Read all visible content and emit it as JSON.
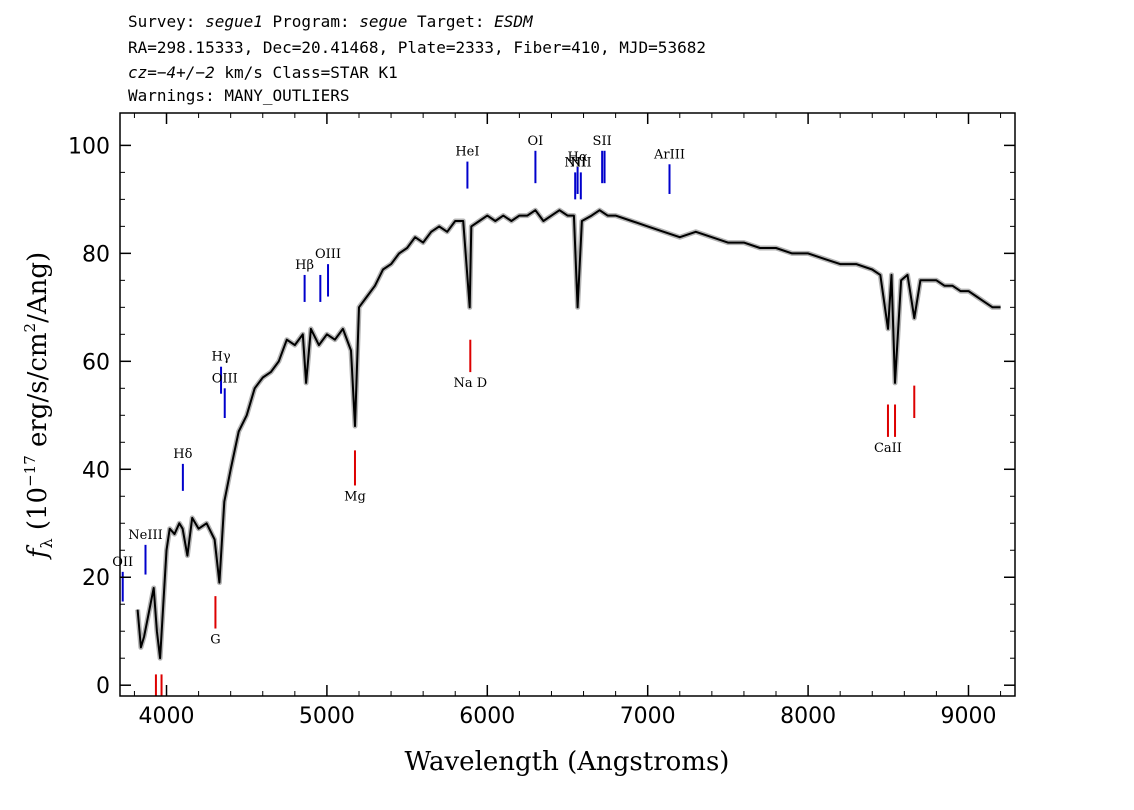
{
  "header": {
    "survey_label": "Survey:",
    "survey": "segue1",
    "program_label": "Program:",
    "program": "segue",
    "target_label": "Target:",
    "target": "ESDM",
    "line2": "RA=298.15333, Dec=20.41468, Plate=2333, Fiber=410, MJD=53682",
    "cz": "cz=−4+/−2",
    "cz_rest": " km/s Class=STAR K1",
    "warnings": "Warnings: MANY_OUTLIERS"
  },
  "colors": {
    "spectrum": "#000000",
    "error_band": "#b4b4b4",
    "emission": "#0000cc",
    "absorption": "#dd0000"
  },
  "chart_data": {
    "type": "line",
    "xlabel": "Wavelength (Angstroms)",
    "ylabel": "f_λ (10^-17 erg/s/cm^2/Ang)",
    "xlim": [
      3710,
      9290
    ],
    "ylim": [
      -2,
      106
    ],
    "xticks": [
      4000,
      5000,
      6000,
      7000,
      8000,
      9000
    ],
    "yticks": [
      0,
      20,
      40,
      60,
      80,
      100
    ],
    "grid": false,
    "series": [
      {
        "x": [
          3820,
          3840,
          3860,
          3880,
          3900,
          3920,
          3940,
          3960,
          3980,
          4000,
          4020,
          4050,
          4080,
          4100,
          4130,
          4160,
          4200,
          4250,
          4300,
          4330,
          4360,
          4400,
          4450,
          4500,
          4550,
          4600,
          4650,
          4700,
          4750,
          4800,
          4850,
          4870,
          4900,
          4950,
          5000,
          5050,
          5100,
          5150,
          5175,
          5200,
          5250,
          5300,
          5350,
          5400,
          5450,
          5500,
          5550,
          5600,
          5650,
          5700,
          5750,
          5800,
          5850,
          5890,
          5900,
          5950,
          6000,
          6050,
          6100,
          6150,
          6200,
          6250,
          6300,
          6350,
          6400,
          6450,
          6500,
          6540,
          6563,
          6590,
          6650,
          6700,
          6750,
          6800,
          6900,
          7000,
          7100,
          7200,
          7300,
          7400,
          7500,
          7600,
          7700,
          7800,
          7900,
          8000,
          8100,
          8200,
          8300,
          8400,
          8450,
          8498,
          8520,
          8542,
          8580,
          8620,
          8662,
          8700,
          8750,
          8800,
          8850,
          8900,
          8950,
          9000,
          9050,
          9100,
          9150,
          9200
        ],
        "y": [
          14,
          7,
          9,
          12,
          15,
          18,
          10,
          5,
          15,
          25,
          29,
          28,
          30,
          29,
          24,
          31,
          29,
          30,
          27,
          19,
          34,
          40,
          47,
          50,
          55,
          57,
          58,
          60,
          64,
          63,
          65,
          56,
          66,
          63,
          65,
          64,
          66,
          62,
          48,
          70,
          72,
          74,
          77,
          78,
          80,
          81,
          83,
          82,
          84,
          85,
          84,
          86,
          86,
          70,
          85,
          86,
          87,
          86,
          87,
          86,
          87,
          87,
          88,
          86,
          87,
          88,
          87,
          87,
          70,
          86,
          87,
          88,
          87,
          87,
          86,
          85,
          84,
          83,
          84,
          83,
          82,
          82,
          81,
          81,
          80,
          80,
          79,
          78,
          78,
          77,
          76,
          66,
          76,
          56,
          75,
          76,
          68,
          75,
          75,
          75,
          74,
          74,
          73,
          73,
          72,
          71,
          70,
          70
        ]
      }
    ],
    "emission_lines": [
      {
        "label": "OII",
        "x": 3727,
        "y": [
          15.5,
          21
        ]
      },
      {
        "label": "NeIII",
        "x": 3869,
        "y": [
          20.5,
          26
        ]
      },
      {
        "label": "Hδ",
        "x": 4102,
        "y": [
          36,
          41
        ]
      },
      {
        "label": "Hγ",
        "x": 4340,
        "y": [
          54,
          59
        ]
      },
      {
        "label": "OIII",
        "x": 4363,
        "y": [
          49.5,
          55
        ]
      },
      {
        "label": "Hβ",
        "x": 4861,
        "y": [
          71,
          76
        ]
      },
      {
        "label": "",
        "x": 4959,
        "y": [
          71,
          76
        ]
      },
      {
        "label": "OIII",
        "x": 5007,
        "y": [
          72,
          78
        ]
      },
      {
        "label": "HeI",
        "x": 5876,
        "y": [
          92,
          97
        ]
      },
      {
        "label": "OI",
        "x": 6300,
        "y": [
          93,
          99
        ]
      },
      {
        "label": "NII",
        "x": 6548,
        "y": [
          90,
          95
        ]
      },
      {
        "label": "Hα",
        "x": 6563,
        "y": [
          91,
          96
        ]
      },
      {
        "label": "NII",
        "x": 6583,
        "y": [
          90,
          95
        ]
      },
      {
        "label": "SII",
        "x": 6716,
        "y": [
          93,
          99
        ]
      },
      {
        "label": "",
        "x": 6731,
        "y": [
          93,
          99
        ]
      },
      {
        "label": "ArIII",
        "x": 7136,
        "y": [
          91,
          96.5
        ]
      }
    ],
    "absorption_lines": [
      {
        "label": "",
        "x": 3934,
        "y": [
          -2,
          2
        ]
      },
      {
        "label": "",
        "x": 3969,
        "y": [
          -2,
          2
        ]
      },
      {
        "label": "G",
        "x": 4305,
        "y": [
          10.5,
          16.5
        ]
      },
      {
        "label": "Mg",
        "x": 5175,
        "y": [
          37,
          43.5
        ]
      },
      {
        "label": "Na D",
        "x": 5894,
        "y": [
          58,
          64
        ]
      },
      {
        "label": "CaII",
        "x": 8498,
        "y": [
          46,
          52
        ]
      },
      {
        "label": "",
        "x": 8542,
        "y": [
          46,
          52
        ]
      },
      {
        "label": "",
        "x": 8662,
        "y": [
          49.5,
          55.5
        ]
      }
    ]
  }
}
